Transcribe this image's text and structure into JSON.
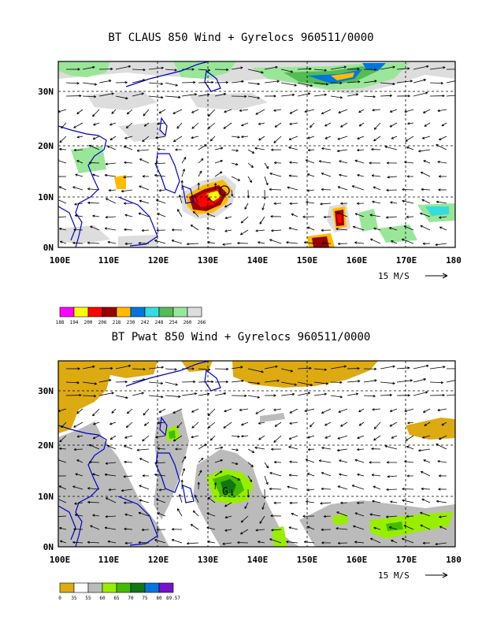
{
  "panels": [
    {
      "title": "BT CLAUS 850 Wind + Gyrelocs 960511/0000",
      "lat_labels": [
        "30N",
        "20N",
        "10N",
        "0N"
      ],
      "lon_labels": [
        "100E",
        "110E",
        "120E",
        "130E",
        "140E",
        "150E",
        "160E",
        "170E",
        "180"
      ],
      "vector_ref": "15 M/S",
      "colorbar": {
        "colors": [
          "#ff00ff",
          "#ffff00",
          "#ff0000",
          "#990000",
          "#ffbb00",
          "#0077dd",
          "#33dddd",
          "#55bb55",
          "#99e699",
          "#dddddd"
        ],
        "labels": [
          "188",
          "194",
          "200",
          "206",
          "218",
          "230",
          "242",
          "248",
          "254",
          "260",
          "266"
        ]
      }
    },
    {
      "title": "BT Pwat 850 Wind + Gyrelocs 960511/0000",
      "lat_labels": [
        "30N",
        "20N",
        "10N",
        "0N"
      ],
      "lon_labels": [
        "100E",
        "110E",
        "120E",
        "130E",
        "140E",
        "150E",
        "160E",
        "170E",
        "180"
      ],
      "vector_ref": "15 M/S",
      "colorbar": {
        "colors": [
          "#ddaa11",
          "#ffffff",
          "#bbbbbb",
          "#99ee00",
          "#44bb00",
          "#117711",
          "#0077dd",
          "#7711cc"
        ],
        "labels": [
          "0",
          "35",
          "55",
          "60",
          "65",
          "70",
          "75",
          "80",
          "89.57"
        ]
      }
    }
  ],
  "gyre_label": "G"
}
